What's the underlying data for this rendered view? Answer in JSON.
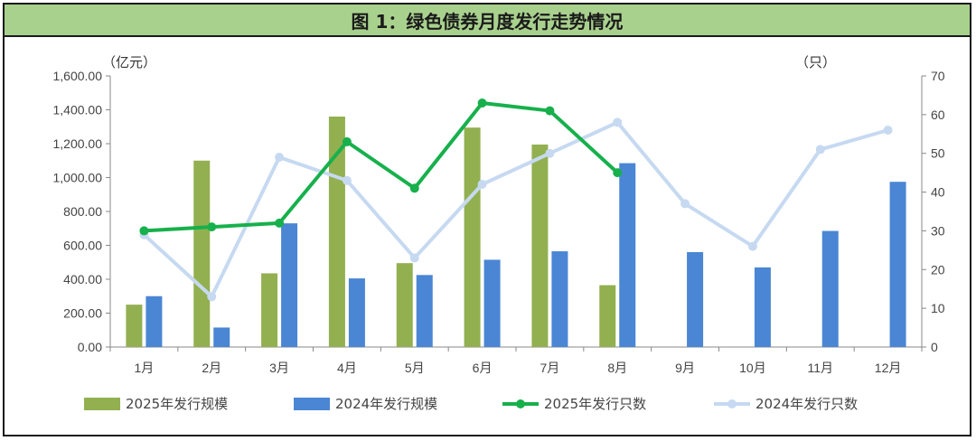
{
  "chart_data": {
    "type": "bar+line",
    "title": "图 1：绿色债券月度发行走势情况",
    "y_left_unit": "（亿元）",
    "y_right_unit": "（只）",
    "categories": [
      "1月",
      "2月",
      "3月",
      "4月",
      "5月",
      "6月",
      "7月",
      "8月",
      "9月",
      "10月",
      "11月",
      "12月"
    ],
    "y_left_ticks": [
      "0.00",
      "200.00",
      "400.00",
      "600.00",
      "800.00",
      "1,000.00",
      "1,200.00",
      "1,400.00",
      "1,600.00"
    ],
    "y_right_ticks": [
      "0",
      "10",
      "20",
      "30",
      "40",
      "50",
      "60",
      "70"
    ],
    "ylim_left": [
      0,
      1600
    ],
    "ylim_right": [
      0,
      70
    ],
    "bar_series": [
      {
        "name": "2025年发行规模",
        "color": "#92b050",
        "values": [
          250,
          1100,
          435,
          1360,
          495,
          1295,
          1195,
          365,
          null,
          null,
          null,
          null
        ]
      },
      {
        "name": "2024年发行规模",
        "color": "#4a86d4",
        "values": [
          300,
          115,
          730,
          405,
          425,
          515,
          565,
          1085,
          560,
          470,
          685,
          975
        ]
      }
    ],
    "line_series": [
      {
        "name": "2025年发行只数",
        "color": "#17b04c",
        "values": [
          30,
          31,
          32,
          53,
          41,
          63,
          61,
          45,
          null,
          null,
          null,
          null
        ]
      },
      {
        "name": "2024年发行只数",
        "color": "#c6d9f1",
        "values": [
          29,
          13,
          49,
          43,
          23,
          42,
          50,
          58,
          37,
          26,
          51,
          56
        ]
      }
    ],
    "legend_position": "bottom"
  }
}
